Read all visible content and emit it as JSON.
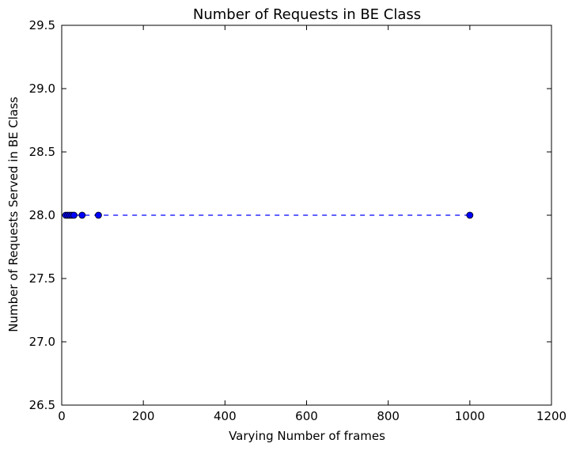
{
  "chart_data": {
    "type": "line",
    "title": "Number of Requests in BE Class",
    "xlabel": "Varying Number of frames",
    "ylabel": "Number of Requests Served in BE Class",
    "xlim": [
      0,
      1200
    ],
    "ylim": [
      26.5,
      29.5
    ],
    "xticks": [
      0,
      200,
      400,
      600,
      800,
      1000,
      1200
    ],
    "yticks": [
      26.5,
      27.0,
      27.5,
      28.0,
      28.5,
      29.0,
      29.5
    ],
    "grid": false,
    "series": [
      {
        "x": [
          10,
          15,
          20,
          25,
          30,
          50,
          90,
          1000
        ],
        "y": [
          28,
          28,
          28,
          28,
          28,
          28,
          28,
          28
        ],
        "color": "#0000ff",
        "linestyle": "dashed",
        "marker": "circle"
      }
    ]
  }
}
